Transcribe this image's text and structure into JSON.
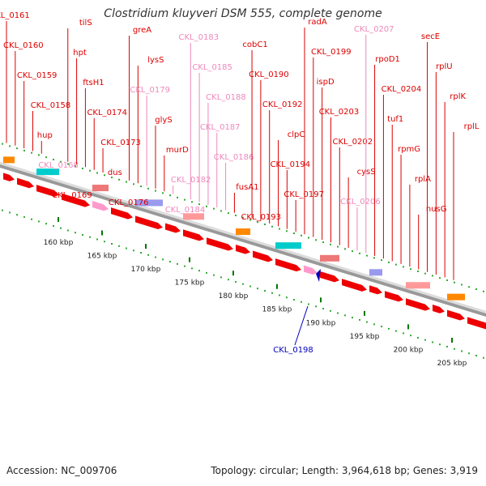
{
  "title": "Clostridium kluyveri DSM 555, complete genome",
  "footer": {
    "accession": "Accession: NC_009706",
    "topology": "Topology: circular; Length: 3,964,618 bp; Genes: 3,919"
  },
  "colors": {
    "gene_label_red": "#dd0000",
    "gene_label_pink": "#ee88bb",
    "selected_label": "#0000bb",
    "forward_arrow": "#ee0000",
    "pink_arrow": "#ff99cc",
    "dots": "#33aa33",
    "ticks": "#007700"
  },
  "ruler": {
    "unit": "kbp",
    "ticks": [
      "160 kbp",
      "165 kbp",
      "170 kbp",
      "175 kbp",
      "180 kbp",
      "185 kbp",
      "190 kbp",
      "195 kbp",
      "200 kbp",
      "205 kbp"
    ]
  },
  "genes": [
    {
      "name": "CKL_0161",
      "color": "red"
    },
    {
      "name": "CKL_0160",
      "color": "red"
    },
    {
      "name": "CKL_0159",
      "color": "red"
    },
    {
      "name": "CKL_0158",
      "color": "red"
    },
    {
      "name": "hup",
      "color": "red"
    },
    {
      "name": "CKL_0168",
      "color": "pink"
    },
    {
      "name": "CKL_0169",
      "color": "red"
    },
    {
      "name": "tilS",
      "color": "red"
    },
    {
      "name": "hpt",
      "color": "red"
    },
    {
      "name": "ftsH1",
      "color": "red"
    },
    {
      "name": "CKL_0174",
      "color": "red"
    },
    {
      "name": "CKL_0173",
      "color": "red"
    },
    {
      "name": "dus",
      "color": "red"
    },
    {
      "name": "CKL_0176",
      "color": "red"
    },
    {
      "name": "greA",
      "color": "red"
    },
    {
      "name": "lysS",
      "color": "red"
    },
    {
      "name": "CKL_0179",
      "color": "pink"
    },
    {
      "name": "glyS",
      "color": "red"
    },
    {
      "name": "murD",
      "color": "red"
    },
    {
      "name": "CKL_0182",
      "color": "pink"
    },
    {
      "name": "CKL_0184",
      "color": "pink"
    },
    {
      "name": "CKL_0183",
      "color": "pink"
    },
    {
      "name": "CKL_0185",
      "color": "pink"
    },
    {
      "name": "CKL_0188",
      "color": "pink"
    },
    {
      "name": "CKL_0187",
      "color": "pink"
    },
    {
      "name": "CKL_0186",
      "color": "pink"
    },
    {
      "name": "fusA1",
      "color": "red"
    },
    {
      "name": "CKL_0193",
      "color": "red"
    },
    {
      "name": "cobC1",
      "color": "red"
    },
    {
      "name": "CKL_0190",
      "color": "red"
    },
    {
      "name": "CKL_0192",
      "color": "red"
    },
    {
      "name": "clpC",
      "color": "red"
    },
    {
      "name": "CKL_0194",
      "color": "red"
    },
    {
      "name": "CKL_0197",
      "color": "red"
    },
    {
      "name": "radA",
      "color": "red"
    },
    {
      "name": "CKL_0199",
      "color": "red"
    },
    {
      "name": "ispD",
      "color": "red"
    },
    {
      "name": "CKL_0203",
      "color": "red"
    },
    {
      "name": "CKL_0202",
      "color": "red"
    },
    {
      "name": "cysS",
      "color": "red"
    },
    {
      "name": "CKL_0206",
      "color": "pink"
    },
    {
      "name": "CKL_0207",
      "color": "pink"
    },
    {
      "name": "rpoD1",
      "color": "red"
    },
    {
      "name": "CKL_0204",
      "color": "red"
    },
    {
      "name": "tuf1",
      "color": "red"
    },
    {
      "name": "rpmG",
      "color": "red"
    },
    {
      "name": "rplA",
      "color": "red"
    },
    {
      "name": "nusG",
      "color": "red"
    },
    {
      "name": "secE",
      "color": "red"
    },
    {
      "name": "rplU",
      "color": "red"
    },
    {
      "name": "rplK",
      "color": "red"
    },
    {
      "name": "rplL",
      "color": "red"
    }
  ],
  "selected_gene": {
    "name": "CKL_0198"
  }
}
